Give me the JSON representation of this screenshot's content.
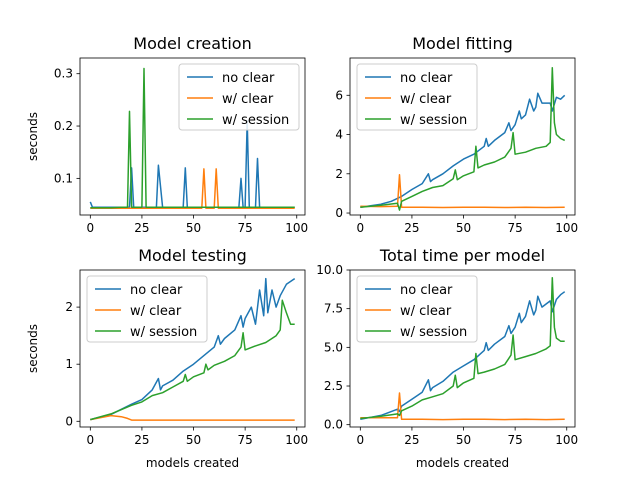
{
  "figure": {
    "background": "#ffffff"
  },
  "chart_data": [
    {
      "type": "line",
      "title": "Model creation",
      "xlabel": "",
      "ylabel": "seconds",
      "xlim": [
        -5,
        104
      ],
      "ylim": [
        0.03,
        0.33
      ],
      "xticks": [
        0,
        25,
        50,
        75,
        100
      ],
      "yticks": [
        0.1,
        0.2,
        0.3
      ],
      "ytick_labels": [
        "0.1",
        "0.2",
        "0.3"
      ],
      "grid": false,
      "legend_position": "upper right",
      "series": [
        {
          "name": "no clear",
          "color": "#1f77b4",
          "x": [
            0,
            1,
            2,
            5,
            10,
            15,
            19,
            20,
            21,
            25,
            30,
            32,
            33,
            35,
            40,
            45,
            46,
            47,
            50,
            55,
            60,
            65,
            70,
            72,
            73,
            74,
            75,
            76,
            77,
            80,
            81,
            82,
            85,
            90,
            95,
            99
          ],
          "y": [
            0.055,
            0.045,
            0.045,
            0.045,
            0.045,
            0.045,
            0.045,
            0.12,
            0.045,
            0.045,
            0.045,
            0.045,
            0.125,
            0.045,
            0.045,
            0.045,
            0.12,
            0.045,
            0.045,
            0.045,
            0.045,
            0.045,
            0.045,
            0.045,
            0.1,
            0.045,
            0.045,
            0.21,
            0.045,
            0.045,
            0.138,
            0.045,
            0.045,
            0.045,
            0.045,
            0.045
          ]
        },
        {
          "name": "w/ clear",
          "color": "#ff7f0e",
          "x": [
            0,
            10,
            20,
            30,
            40,
            50,
            54,
            55,
            56,
            60,
            61,
            62,
            70,
            80,
            90,
            99
          ],
          "y": [
            0.043,
            0.043,
            0.043,
            0.043,
            0.043,
            0.043,
            0.043,
            0.118,
            0.043,
            0.043,
            0.118,
            0.043,
            0.043,
            0.043,
            0.043,
            0.043
          ]
        },
        {
          "name": "w/ session",
          "color": "#2ca02c",
          "x": [
            0,
            5,
            10,
            15,
            17,
            18,
            19,
            20,
            21,
            24,
            25,
            26,
            27,
            30,
            40,
            50,
            60,
            70,
            80,
            90,
            99
          ],
          "y": [
            0.044,
            0.044,
            0.044,
            0.045,
            0.045,
            0.045,
            0.228,
            0.045,
            0.045,
            0.045,
            0.045,
            0.31,
            0.045,
            0.045,
            0.045,
            0.045,
            0.045,
            0.045,
            0.045,
            0.045,
            0.045
          ]
        }
      ]
    },
    {
      "type": "line",
      "title": "Model fitting",
      "xlabel": "",
      "ylabel": "",
      "xlim": [
        -5,
        104
      ],
      "ylim": [
        -0.1,
        7.9
      ],
      "xticks": [
        0,
        25,
        50,
        75,
        100
      ],
      "yticks": [
        0,
        2,
        4,
        6
      ],
      "ytick_labels": [
        "0",
        "2",
        "4",
        "6"
      ],
      "grid": false,
      "legend_position": "upper left",
      "series": [
        {
          "name": "no clear",
          "color": "#1f77b4",
          "x": [
            0,
            10,
            15,
            20,
            25,
            30,
            33,
            34,
            35,
            40,
            45,
            50,
            55,
            60,
            61,
            62,
            65,
            70,
            72,
            73,
            75,
            77,
            78,
            80,
            82,
            84,
            85,
            86,
            88,
            90,
            92,
            93,
            95,
            97,
            99
          ],
          "y": [
            0.3,
            0.45,
            0.6,
            0.85,
            1.2,
            1.5,
            2.0,
            1.6,
            1.7,
            2.0,
            2.4,
            2.75,
            3.0,
            3.4,
            3.8,
            3.4,
            3.7,
            4.1,
            4.6,
            4.2,
            4.5,
            5.2,
            4.8,
            5.0,
            5.8,
            5.2,
            5.4,
            6.1,
            5.6,
            5.6,
            5.6,
            5.2,
            5.9,
            5.8,
            6.0
          ]
        },
        {
          "name": "w/ clear",
          "color": "#ff7f0e",
          "x": [
            0,
            10,
            18,
            19,
            20,
            21,
            30,
            40,
            50,
            60,
            70,
            80,
            90,
            99
          ],
          "y": [
            0.35,
            0.33,
            0.35,
            1.95,
            0.3,
            0.3,
            0.3,
            0.28,
            0.3,
            0.3,
            0.28,
            0.3,
            0.28,
            0.3
          ]
        },
        {
          "name": "w/ session",
          "color": "#2ca02c",
          "x": [
            0,
            10,
            18,
            19,
            20,
            25,
            30,
            35,
            40,
            45,
            46,
            47,
            50,
            55,
            56,
            57,
            60,
            65,
            70,
            73,
            74,
            75,
            80,
            85,
            90,
            92,
            93,
            94,
            95,
            97,
            99
          ],
          "y": [
            0.3,
            0.4,
            0.5,
            0.15,
            0.6,
            0.85,
            1.1,
            1.3,
            1.4,
            1.75,
            2.2,
            1.7,
            1.9,
            2.1,
            3.4,
            2.3,
            2.45,
            2.6,
            2.85,
            3.3,
            4.1,
            3.0,
            3.1,
            3.3,
            3.4,
            3.6,
            7.4,
            4.6,
            4.0,
            3.8,
            3.7
          ]
        }
      ]
    },
    {
      "type": "line",
      "title": "Model testing",
      "xlabel": "models created",
      "ylabel": "seconds",
      "xlim": [
        -5,
        104
      ],
      "ylim": [
        -0.1,
        2.65
      ],
      "xticks": [
        0,
        25,
        50,
        75,
        100
      ],
      "xtick_labels": [
        "0",
        "25",
        "50",
        "75",
        "100"
      ],
      "yticks": [
        0,
        1,
        2
      ],
      "ytick_labels": [
        "0",
        "1",
        "2"
      ],
      "grid": false,
      "legend_position": "upper left",
      "series": [
        {
          "name": "no clear",
          "color": "#1f77b4",
          "x": [
            0,
            10,
            20,
            25,
            30,
            33,
            34,
            35,
            40,
            45,
            50,
            55,
            60,
            62,
            63,
            65,
            70,
            73,
            74,
            75,
            78,
            80,
            82,
            84,
            85,
            86,
            88,
            90,
            92,
            95,
            99
          ],
          "y": [
            0.03,
            0.12,
            0.3,
            0.38,
            0.55,
            0.75,
            0.55,
            0.62,
            0.72,
            0.88,
            1.0,
            1.15,
            1.3,
            1.5,
            1.35,
            1.45,
            1.6,
            1.85,
            1.65,
            1.8,
            2.0,
            1.7,
            2.3,
            1.85,
            2.5,
            1.9,
            2.3,
            2.0,
            2.2,
            2.4,
            2.5
          ]
        },
        {
          "name": "w/ clear",
          "color": "#ff7f0e",
          "x": [
            0,
            10,
            15,
            18,
            20,
            30,
            40,
            50,
            60,
            70,
            80,
            90,
            99
          ],
          "y": [
            0.03,
            0.1,
            0.08,
            0.05,
            0.02,
            0.02,
            0.02,
            0.02,
            0.02,
            0.02,
            0.02,
            0.02,
            0.02
          ]
        },
        {
          "name": "w/ session",
          "color": "#2ca02c",
          "x": [
            0,
            10,
            20,
            25,
            30,
            35,
            40,
            45,
            46,
            47,
            50,
            55,
            56,
            57,
            60,
            65,
            70,
            73,
            74,
            75,
            80,
            85,
            90,
            92,
            93,
            95,
            97,
            99
          ],
          "y": [
            0.03,
            0.13,
            0.28,
            0.34,
            0.45,
            0.5,
            0.6,
            0.7,
            0.82,
            0.7,
            0.78,
            0.85,
            1.0,
            0.9,
            0.98,
            1.05,
            1.15,
            1.3,
            1.55,
            1.25,
            1.32,
            1.38,
            1.5,
            1.6,
            2.12,
            1.9,
            1.7,
            1.7
          ]
        }
      ]
    },
    {
      "type": "line",
      "title": "Total time per model",
      "xlabel": "models created",
      "ylabel": "",
      "xlim": [
        -5,
        104
      ],
      "ylim": [
        -0.15,
        10.0
      ],
      "xticks": [
        0,
        25,
        50,
        75,
        100
      ],
      "xtick_labels": [
        "0",
        "25",
        "50",
        "75",
        "100"
      ],
      "yticks": [
        0,
        2.5,
        5.0,
        7.5,
        10.0
      ],
      "ytick_labels": [
        "0.0",
        "2.5",
        "5.0",
        "7.5",
        "10.0"
      ],
      "grid": false,
      "legend_position": "upper left",
      "series": [
        {
          "name": "no clear",
          "color": "#1f77b4",
          "x": [
            0,
            10,
            18,
            19,
            20,
            25,
            30,
            33,
            34,
            35,
            40,
            45,
            50,
            55,
            60,
            61,
            62,
            65,
            70,
            72,
            73,
            75,
            77,
            78,
            80,
            82,
            84,
            85,
            86,
            88,
            90,
            92,
            93,
            95,
            97,
            99
          ],
          "y": [
            0.35,
            0.6,
            1.0,
            0.85,
            1.2,
            1.65,
            2.1,
            2.9,
            2.2,
            2.4,
            2.8,
            3.4,
            3.8,
            4.2,
            4.8,
            5.3,
            4.8,
            5.2,
            5.7,
            6.4,
            5.9,
            6.3,
            7.2,
            6.6,
            7.0,
            8.0,
            7.1,
            7.4,
            8.3,
            7.6,
            7.8,
            8.0,
            7.3,
            8.1,
            8.4,
            8.6
          ]
        },
        {
          "name": "w/ clear",
          "color": "#ff7f0e",
          "x": [
            0,
            10,
            18,
            19,
            20,
            21,
            30,
            40,
            50,
            60,
            70,
            80,
            90,
            99
          ],
          "y": [
            0.45,
            0.45,
            0.45,
            2.05,
            0.35,
            0.35,
            0.35,
            0.33,
            0.35,
            0.35,
            0.33,
            0.35,
            0.33,
            0.35
          ]
        },
        {
          "name": "w/ session",
          "color": "#2ca02c",
          "x": [
            0,
            10,
            18,
            19,
            20,
            25,
            30,
            35,
            40,
            45,
            46,
            47,
            50,
            55,
            56,
            57,
            60,
            65,
            70,
            73,
            74,
            75,
            80,
            85,
            90,
            92,
            93,
            94,
            95,
            97,
            99
          ],
          "y": [
            0.4,
            0.55,
            0.7,
            0.6,
            0.9,
            1.2,
            1.6,
            1.8,
            2.0,
            2.5,
            3.2,
            2.4,
            2.7,
            3.0,
            4.6,
            3.3,
            3.4,
            3.6,
            3.9,
            4.5,
            5.8,
            4.2,
            4.4,
            4.6,
            4.9,
            5.1,
            9.5,
            6.3,
            5.6,
            5.4,
            5.4
          ]
        }
      ]
    }
  ]
}
